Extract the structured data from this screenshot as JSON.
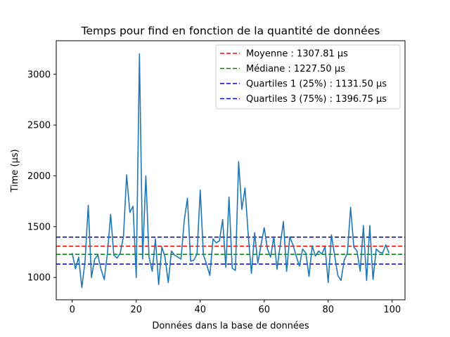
{
  "chart_data": {
    "type": "line",
    "title": "Temps pour find en fonction de la quantité de données",
    "xlabel": "Données dans la base de données",
    "ylabel": "Time (µs)",
    "xlim": [
      -5,
      104
    ],
    "ylim": [
      780,
      3330
    ],
    "xticks": [
      0,
      20,
      40,
      60,
      80,
      100
    ],
    "yticks": [
      1000,
      1500,
      2000,
      2500,
      3000
    ],
    "grid": false,
    "legend_position": "top-right",
    "series": [
      {
        "color": "#1f77b4",
        "x": [
          0,
          1,
          2,
          3,
          4,
          5,
          6,
          7,
          8,
          9,
          10,
          11,
          12,
          13,
          14,
          15,
          16,
          17,
          18,
          19,
          20,
          21,
          22,
          23,
          24,
          25,
          26,
          27,
          28,
          29,
          30,
          31,
          32,
          33,
          34,
          35,
          36,
          37,
          38,
          39,
          40,
          41,
          42,
          43,
          44,
          45,
          46,
          47,
          48,
          49,
          50,
          51,
          52,
          53,
          54,
          55,
          56,
          57,
          58,
          59,
          60,
          61,
          62,
          63,
          64,
          65,
          66,
          67,
          68,
          69,
          70,
          71,
          72,
          73,
          74,
          75,
          76,
          77,
          78,
          79,
          80,
          81,
          82,
          83,
          84,
          85,
          86,
          87,
          88,
          89,
          90,
          91,
          92,
          93,
          94,
          95,
          96,
          97,
          98,
          99
        ],
        "values": [
          1240,
          1085,
          1200,
          900,
          1160,
          1710,
          1000,
          1180,
          1220,
          1080,
          980,
          1240,
          1620,
          1220,
          1190,
          1240,
          1400,
          2010,
          1640,
          1700,
          1000,
          3200,
          1180,
          2000,
          1200,
          1060,
          1380,
          930,
          1300,
          1200,
          950,
          1260,
          1220,
          1200,
          1180,
          1560,
          1780,
          1160,
          1170,
          1230,
          1860,
          1220,
          1130,
          1020,
          1380,
          1340,
          1360,
          1570,
          1100,
          1790,
          1090,
          1070,
          2140,
          1670,
          1880,
          1420,
          1040,
          1440,
          1140,
          1320,
          1490,
          1280,
          1200,
          1400,
          1080,
          1320,
          1550,
          1060,
          1400,
          1320,
          1210,
          1110,
          1280,
          1240,
          1010,
          1310,
          1210,
          1260,
          1230,
          1300,
          950,
          1420,
          1220,
          1020,
          970,
          1170,
          1240,
          1690,
          1300,
          1260,
          1060,
          1510,
          970,
          1510,
          980,
          1280,
          1250,
          1240,
          1320,
          1240
        ]
      }
    ],
    "reference_lines": [
      {
        "label": "Moyenne : 1307.81 µs",
        "y": 1307.81,
        "color": "#ff0000"
      },
      {
        "label": "Médiane : 1227.50 µs",
        "y": 1227.5,
        "color": "#008000"
      },
      {
        "label": "Quartiles 1 (25%) : 1131.50 µs",
        "y": 1131.5,
        "color": "#0000cc"
      },
      {
        "label": "Quartiles 3 (75%) : 1396.75 µs",
        "y": 1396.75,
        "color": "#0000cc"
      }
    ]
  }
}
